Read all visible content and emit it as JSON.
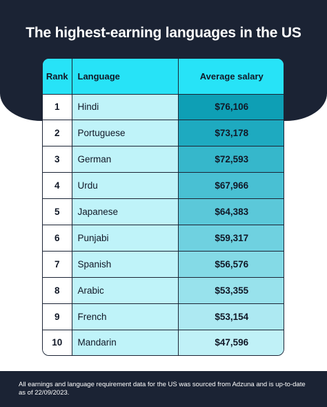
{
  "title": "The highest-earning languages in the US",
  "table": {
    "headers": {
      "rank": "Rank",
      "language": "Language",
      "salary": "Average salary"
    },
    "rows": [
      {
        "rank": "1",
        "language": "Hindi",
        "salary": "$76,106"
      },
      {
        "rank": "2",
        "language": "Portuguese",
        "salary": "$73,178"
      },
      {
        "rank": "3",
        "language": "German",
        "salary": "$72,593"
      },
      {
        "rank": "4",
        "language": "Urdu",
        "salary": "$67,966"
      },
      {
        "rank": "5",
        "language": "Japanese",
        "salary": "$64,383"
      },
      {
        "rank": "6",
        "language": "Punjabi",
        "salary": "$59,317"
      },
      {
        "rank": "7",
        "language": "Spanish",
        "salary": "$56,576"
      },
      {
        "rank": "8",
        "language": "Arabic",
        "salary": "$53,355"
      },
      {
        "rank": "9",
        "language": "French",
        "salary": "$53,154"
      },
      {
        "rank": "10",
        "language": "Mandarin",
        "salary": "$47,596"
      }
    ],
    "salary_cell_colors": [
      "#0e9fb5",
      "#1eaac0",
      "#36b7cb",
      "#49c0d3",
      "#5bc8d9",
      "#6fd1e0",
      "#84daE6",
      "#98e2ec",
      "#ade9f2",
      "#c0f1f7"
    ]
  },
  "footer": "All earnings and language requirement data for the US was sourced from Adzuna and is up-to-date as of 22/09/2023.",
  "colors": {
    "background_dark": "#1b2334",
    "header_cyan": "#27e3f7",
    "language_cell": "#bff3f9"
  }
}
